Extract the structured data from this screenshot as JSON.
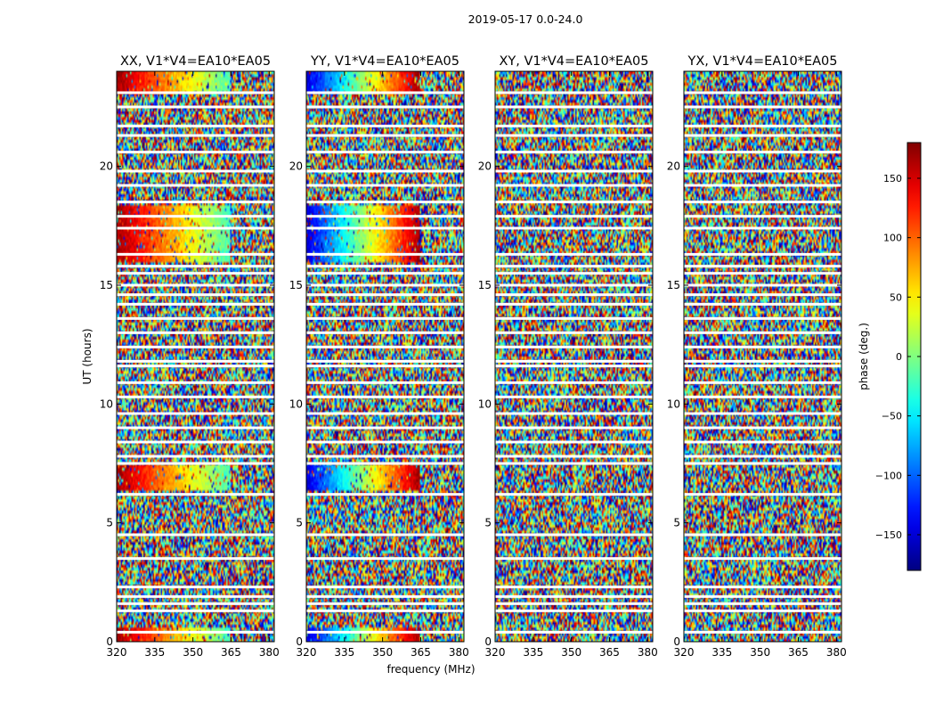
{
  "chart_data": {
    "type": "heatmap",
    "suptitle": "2019-05-17 0.0-24.0",
    "xlabel": "frequency (MHz)",
    "ylabel": "UT (hours)",
    "xlim": [
      320,
      382
    ],
    "ylim": [
      0,
      24
    ],
    "xticks": [
      320,
      335,
      350,
      365,
      380
    ],
    "yticks": [
      0,
      5,
      10,
      15,
      20
    ],
    "colormap": "jet",
    "panels": [
      {
        "title": "XX, V1*V4=EA10*EA05",
        "correlation": "XX",
        "coherent_bands_ut": [
          [
            0.0,
            0.6
          ],
          [
            15.9,
            18.4
          ],
          [
            23.0,
            24.0
          ],
          [
            6.3,
            7.4
          ]
        ],
        "coherent_phase_start_deg": 170,
        "coherent_phase_end_deg": -20
      },
      {
        "title": "YY, V1*V4=EA10*EA05",
        "correlation": "YY",
        "coherent_bands_ut": [
          [
            0.0,
            0.6
          ],
          [
            15.9,
            18.4
          ],
          [
            23.0,
            24.0
          ],
          [
            6.3,
            7.4
          ]
        ],
        "coherent_phase_start_deg": -150,
        "coherent_phase_end_deg": 170
      },
      {
        "title": "XY, V1*V4=EA10*EA05",
        "correlation": "XY",
        "coherent_bands_ut": [],
        "coherent_phase_start_deg": 0,
        "coherent_phase_end_deg": 0
      },
      {
        "title": "YX, V1*V4=EA10*EA05",
        "correlation": "YX",
        "coherent_bands_ut": [],
        "coherent_phase_start_deg": 0,
        "coherent_phase_end_deg": 0
      }
    ],
    "flagged_gaps_ut": [
      0.4,
      1.3,
      1.6,
      1.9,
      2.3,
      3.5,
      4.5,
      6.2,
      7.5,
      7.8,
      8.4,
      9.0,
      9.6,
      10.3,
      10.9,
      11.6,
      11.8,
      12.4,
      13.0,
      13.6,
      14.2,
      14.6,
      15.0,
      15.5,
      15.8,
      16.3,
      17.4,
      17.9,
      18.5,
      19.2,
      19.8,
      20.6,
      21.3,
      21.7,
      22.5,
      23.1
    ],
    "colorbar": {
      "label": "phase (deg.)",
      "range": [
        -180,
        180
      ],
      "ticks": [
        150,
        100,
        50,
        0,
        -50,
        -100,
        -150
      ],
      "tick_labels": [
        "150",
        "100",
        "50",
        "0",
        "−50",
        "−100",
        "−150"
      ]
    }
  }
}
